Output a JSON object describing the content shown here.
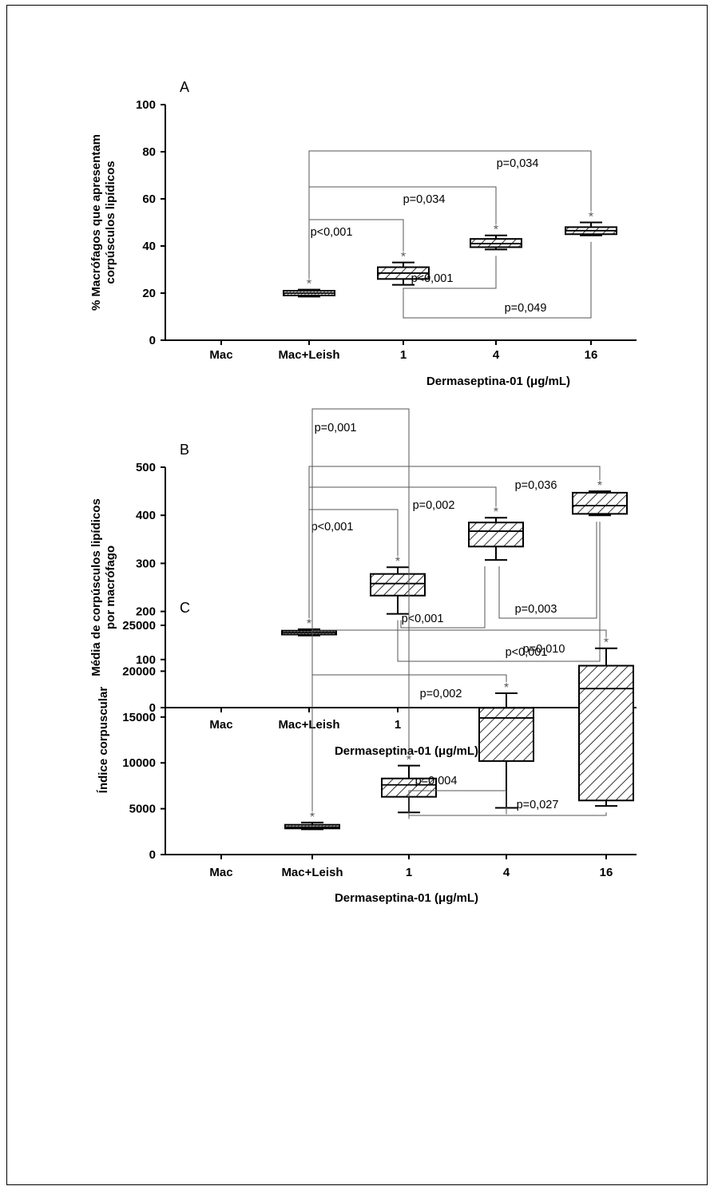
{
  "colors": {
    "box_fill": "#ffffff",
    "hatch": "#000000",
    "bracket": "#555555",
    "frame": "#000000"
  },
  "chart_data": [
    {
      "type": "box",
      "panel_letter": "A",
      "ylabel_lines": [
        "% Macrófagos que apresentam",
        "corpúsculos lipídicos"
      ],
      "xlabel": "Dermaseptina-01 (μg/mL)",
      "ylim": [
        0,
        100
      ],
      "yticks": [
        0,
        20,
        40,
        60,
        80,
        100
      ],
      "categories": [
        "Mac",
        "Mac+Leish",
        "1",
        "4",
        "16"
      ],
      "boxes": [
        {
          "min": 0,
          "q1": 0,
          "median": 0,
          "q3": 0,
          "max": 0,
          "star": false
        },
        {
          "min": 18.5,
          "q1": 19,
          "median": 20,
          "q3": 21,
          "max": 21.5,
          "star": true
        },
        {
          "min": 23.5,
          "q1": 26,
          "median": 28.5,
          "q3": 31,
          "max": 33,
          "star": true
        },
        {
          "min": 38.5,
          "q1": 39.5,
          "median": 41,
          "q3": 43,
          "max": 44.5,
          "star": true
        },
        {
          "min": 44.5,
          "q1": 45,
          "median": 46.5,
          "q3": 48,
          "max": 50,
          "star": true
        }
      ],
      "comparisons": [
        {
          "from": 1,
          "to": 2,
          "text": "p<0,001",
          "side": "top"
        },
        {
          "from": 1,
          "to": 3,
          "text": "p=0,034",
          "side": "top"
        },
        {
          "from": 1,
          "to": 4,
          "text": "p=0,034",
          "side": "top"
        },
        {
          "from": 2,
          "to": 3,
          "text": "p<0,001",
          "side": "bottom"
        },
        {
          "from": 2,
          "to": 4,
          "text": "p=0,049",
          "side": "bottom"
        }
      ]
    },
    {
      "type": "box",
      "panel_letter": "B",
      "ylabel_lines": [
        "Média de corpúsculos lipídicos",
        "por macrófago"
      ],
      "xlabel": "Dermaseptina-01 (μg/mL)",
      "ylim": [
        0,
        500
      ],
      "yticks": [
        0,
        100,
        200,
        300,
        400,
        500
      ],
      "categories": [
        "Mac",
        "Mac+Leish",
        "1",
        "4",
        "16"
      ],
      "boxes": [
        {
          "min": 0,
          "q1": 0,
          "median": 0,
          "q3": 0,
          "max": 0,
          "star": false
        },
        {
          "min": 150,
          "q1": 152,
          "median": 156,
          "q3": 160,
          "max": 163,
          "star": true
        },
        {
          "min": 195,
          "q1": 233,
          "median": 258,
          "q3": 278,
          "max": 292,
          "star": true
        },
        {
          "min": 307,
          "q1": 335,
          "median": 367,
          "q3": 385,
          "max": 395,
          "star": true
        },
        {
          "min": 400,
          "q1": 403,
          "median": 420,
          "q3": 447,
          "max": 450,
          "star": true
        }
      ],
      "comparisons": [
        {
          "from": 1,
          "to": 2,
          "text": "p<0,001",
          "side": "top"
        },
        {
          "from": 1,
          "to": 3,
          "text": "p=0,002",
          "side": "top"
        },
        {
          "from": 1,
          "to": 4,
          "text": "p=0,036",
          "side": "top"
        },
        {
          "from": 2,
          "to": 3,
          "text": "p<0,001",
          "side": "bottom"
        },
        {
          "from": 3,
          "to": 4,
          "text": "p=0,003",
          "side": "bottom"
        },
        {
          "from": 2,
          "to": 4,
          "text": "p<0,001",
          "side": "bottom"
        }
      ]
    },
    {
      "type": "box",
      "panel_letter": "C",
      "ylabel_lines": [
        "Índice corpuscular"
      ],
      "xlabel": "Dermaseptina-01 (μg/mL)",
      "ylim": [
        0,
        25000
      ],
      "yticks": [
        0,
        5000,
        10000,
        15000,
        20000,
        25000
      ],
      "categories": [
        "Mac",
        "Mac+Leish",
        "1",
        "4",
        "16"
      ],
      "boxes": [
        {
          "min": 0,
          "q1": 0,
          "median": 0,
          "q3": 0,
          "max": 0,
          "star": false
        },
        {
          "min": 2750,
          "q1": 2850,
          "median": 3000,
          "q3": 3250,
          "max": 3500,
          "star": true
        },
        {
          "min": 4600,
          "q1": 6300,
          "median": 7600,
          "q3": 8300,
          "max": 9700,
          "star": true
        },
        {
          "min": 5100,
          "q1": 10200,
          "median": 14900,
          "q3": 16000,
          "max": 17600,
          "star": true
        },
        {
          "min": 5300,
          "q1": 5900,
          "median": 18100,
          "q3": 20600,
          "max": 22500,
          "star": true
        }
      ],
      "comparisons": [
        {
          "from": 1,
          "to": 2,
          "text": "p=0,001",
          "side": "top"
        },
        {
          "from": 1,
          "to": 3,
          "text": "p=0,002",
          "side": "top"
        },
        {
          "from": 1,
          "to": 4,
          "text": "p=0,010",
          "side": "top"
        },
        {
          "from": 2,
          "to": 3,
          "text": "p=0,004",
          "side": "bottom"
        },
        {
          "from": 2,
          "to": 4,
          "text": "p=0,027",
          "side": "bottom"
        }
      ]
    }
  ]
}
